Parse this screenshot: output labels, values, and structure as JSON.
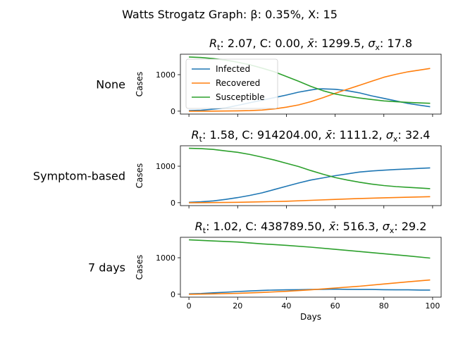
{
  "figure": {
    "suptitle": "Watts Strogatz Graph: β: 0.35%, X: 15"
  },
  "legend": {
    "placement": "upper-left of top panel",
    "entries": [
      {
        "label": "Infected",
        "color": "#1f77b4"
      },
      {
        "label": "Recovered",
        "color": "#ff7f0e"
      },
      {
        "label": "Susceptible",
        "color": "#2ca02c"
      }
    ]
  },
  "colors": {
    "infected": "#1f77b4",
    "recovered": "#ff7f0e",
    "susceptible": "#2ca02c"
  },
  "chart_data": [
    {
      "type": "line",
      "row_label": "None",
      "title": {
        "rt": "2.07",
        "c": "0.00",
        "xbar": "1299.5",
        "sigma": "17.8"
      },
      "ylabel": "Cases",
      "xlabel": "",
      "xlim": [
        -3.5,
        103.5
      ],
      "ylim": [
        -80,
        1560
      ],
      "yticks": [
        0,
        1000
      ],
      "xticks": [
        0,
        20,
        40,
        60,
        80,
        100
      ],
      "show_x_ticklabels": false,
      "grid": false,
      "series": [
        {
          "name": "Infected",
          "color": "#1f77b4",
          "points": [
            [
              0,
              15
            ],
            [
              5,
              25
            ],
            [
              10,
              55
            ],
            [
              15,
              90
            ],
            [
              20,
              160
            ],
            [
              25,
              230
            ],
            [
              30,
              300
            ],
            [
              35,
              370
            ],
            [
              40,
              440
            ],
            [
              45,
              520
            ],
            [
              50,
              580
            ],
            [
              53,
              610
            ],
            [
              55,
              610
            ],
            [
              60,
              600
            ],
            [
              65,
              560
            ],
            [
              70,
              500
            ],
            [
              75,
              420
            ],
            [
              80,
              350
            ],
            [
              85,
              280
            ],
            [
              90,
              210
            ],
            [
              95,
              160
            ],
            [
              99,
              120
            ]
          ]
        },
        {
          "name": "Recovered",
          "color": "#ff7f0e",
          "points": [
            [
              0,
              0
            ],
            [
              10,
              2
            ],
            [
              20,
              8
            ],
            [
              25,
              15
            ],
            [
              30,
              30
            ],
            [
              35,
              60
            ],
            [
              40,
              110
            ],
            [
              45,
              170
            ],
            [
              50,
              260
            ],
            [
              55,
              370
            ],
            [
              60,
              490
            ],
            [
              65,
              600
            ],
            [
              70,
              710
            ],
            [
              75,
              820
            ],
            [
              80,
              930
            ],
            [
              85,
              1010
            ],
            [
              90,
              1080
            ],
            [
              95,
              1130
            ],
            [
              99,
              1170
            ]
          ]
        },
        {
          "name": "Susceptible",
          "color": "#2ca02c",
          "points": [
            [
              0,
              1485
            ],
            [
              5,
              1470
            ],
            [
              10,
              1440
            ],
            [
              15,
              1400
            ],
            [
              20,
              1340
            ],
            [
              25,
              1270
            ],
            [
              30,
              1180
            ],
            [
              35,
              1080
            ],
            [
              40,
              950
            ],
            [
              45,
              820
            ],
            [
              50,
              680
            ],
            [
              55,
              560
            ],
            [
              60,
              470
            ],
            [
              65,
              410
            ],
            [
              70,
              360
            ],
            [
              75,
              320
            ],
            [
              80,
              280
            ],
            [
              85,
              260
            ],
            [
              90,
              240
            ],
            [
              95,
              225
            ],
            [
              99,
              215
            ]
          ]
        }
      ]
    },
    {
      "type": "line",
      "row_label": "Symptom-based",
      "title": {
        "rt": "1.58",
        "c": "914204.00",
        "xbar": "1111.2",
        "sigma": "32.4"
      },
      "ylabel": "Cases",
      "xlabel": "",
      "xlim": [
        -3.5,
        103.5
      ],
      "ylim": [
        -80,
        1560
      ],
      "yticks": [
        0,
        1000
      ],
      "xticks": [
        0,
        20,
        40,
        60,
        80,
        100
      ],
      "show_x_ticklabels": false,
      "grid": false,
      "series": [
        {
          "name": "Infected",
          "color": "#1f77b4",
          "points": [
            [
              0,
              10
            ],
            [
              5,
              25
            ],
            [
              10,
              50
            ],
            [
              15,
              90
            ],
            [
              20,
              140
            ],
            [
              25,
              200
            ],
            [
              30,
              270
            ],
            [
              35,
              360
            ],
            [
              40,
              450
            ],
            [
              45,
              540
            ],
            [
              50,
              620
            ],
            [
              55,
              680
            ],
            [
              60,
              740
            ],
            [
              65,
              790
            ],
            [
              70,
              840
            ],
            [
              75,
              870
            ],
            [
              80,
              890
            ],
            [
              85,
              910
            ],
            [
              90,
              925
            ],
            [
              95,
              940
            ],
            [
              99,
              955
            ]
          ]
        },
        {
          "name": "Recovered",
          "color": "#ff7f0e",
          "points": [
            [
              0,
              0
            ],
            [
              10,
              3
            ],
            [
              20,
              10
            ],
            [
              30,
              25
            ],
            [
              40,
              40
            ],
            [
              50,
              65
            ],
            [
              60,
              90
            ],
            [
              70,
              115
            ],
            [
              80,
              135
            ],
            [
              90,
              150
            ],
            [
              99,
              165
            ]
          ]
        },
        {
          "name": "Susceptible",
          "color": "#2ca02c",
          "points": [
            [
              0,
              1490
            ],
            [
              5,
              1480
            ],
            [
              10,
              1460
            ],
            [
              15,
              1420
            ],
            [
              20,
              1380
            ],
            [
              25,
              1320
            ],
            [
              30,
              1250
            ],
            [
              35,
              1170
            ],
            [
              40,
              1080
            ],
            [
              45,
              990
            ],
            [
              50,
              880
            ],
            [
              55,
              780
            ],
            [
              60,
              690
            ],
            [
              65,
              620
            ],
            [
              70,
              560
            ],
            [
              75,
              510
            ],
            [
              80,
              470
            ],
            [
              85,
              440
            ],
            [
              90,
              420
            ],
            [
              95,
              400
            ],
            [
              99,
              385
            ]
          ]
        }
      ]
    },
    {
      "type": "line",
      "row_label": "7 days",
      "title": {
        "rt": "1.02",
        "c": "438789.50",
        "xbar": "516.3",
        "sigma": "29.2"
      },
      "ylabel": "Cases",
      "xlabel": "Days",
      "xlim": [
        -3.5,
        103.5
      ],
      "ylim": [
        -80,
        1560
      ],
      "yticks": [
        0,
        1000
      ],
      "xticks": [
        0,
        20,
        40,
        60,
        80,
        100
      ],
      "show_x_ticklabels": true,
      "grid": false,
      "series": [
        {
          "name": "Infected",
          "color": "#1f77b4",
          "points": [
            [
              0,
              10
            ],
            [
              5,
              20
            ],
            [
              10,
              40
            ],
            [
              15,
              55
            ],
            [
              20,
              75
            ],
            [
              25,
              90
            ],
            [
              30,
              105
            ],
            [
              35,
              115
            ],
            [
              40,
              120
            ],
            [
              45,
              125
            ],
            [
              50,
              130
            ],
            [
              55,
              135
            ],
            [
              60,
              140
            ],
            [
              65,
              135
            ],
            [
              70,
              130
            ],
            [
              75,
              130
            ],
            [
              80,
              125
            ],
            [
              85,
              120
            ],
            [
              90,
              120
            ],
            [
              95,
              115
            ],
            [
              99,
              115
            ]
          ]
        },
        {
          "name": "Recovered",
          "color": "#ff7f0e",
          "points": [
            [
              0,
              0
            ],
            [
              10,
              10
            ],
            [
              20,
              25
            ],
            [
              30,
              50
            ],
            [
              40,
              80
            ],
            [
              50,
              120
            ],
            [
              60,
              170
            ],
            [
              70,
              220
            ],
            [
              80,
              280
            ],
            [
              90,
              340
            ],
            [
              99,
              390
            ]
          ]
        },
        {
          "name": "Susceptible",
          "color": "#2ca02c",
          "points": [
            [
              0,
              1490
            ],
            [
              10,
              1460
            ],
            [
              20,
              1430
            ],
            [
              30,
              1380
            ],
            [
              40,
              1340
            ],
            [
              50,
              1290
            ],
            [
              60,
              1230
            ],
            [
              70,
              1170
            ],
            [
              80,
              1110
            ],
            [
              90,
              1050
            ],
            [
              99,
              990
            ]
          ]
        }
      ]
    }
  ]
}
